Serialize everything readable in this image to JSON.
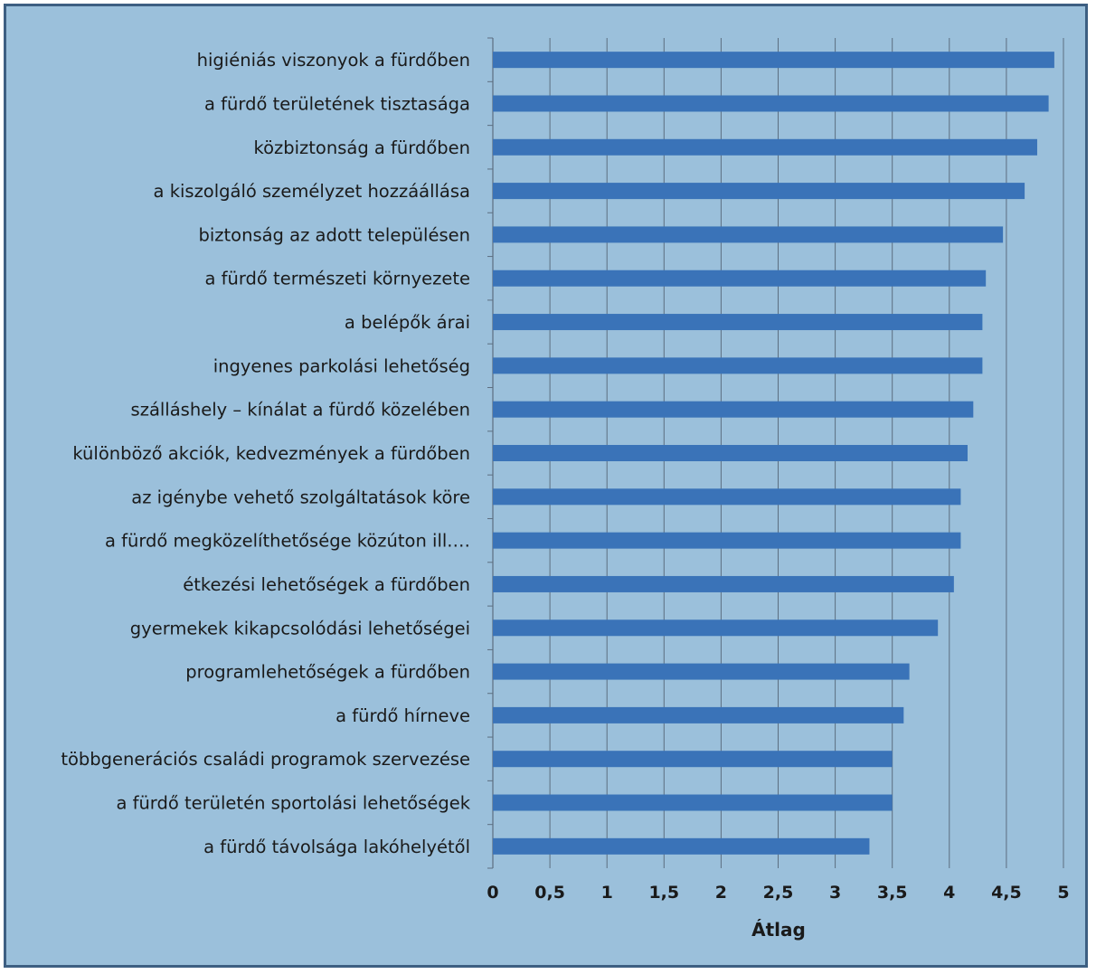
{
  "chart_data": {
    "type": "bar",
    "orientation": "horizontal",
    "xlabel": "Átlag",
    "xlim": [
      0,
      5
    ],
    "xticks": [
      "0",
      "0,5",
      "1",
      "1,5",
      "2",
      "2,5",
      "3",
      "3,5",
      "4",
      "4,5",
      "5"
    ],
    "grid": true,
    "bar_color": "#3a73b8",
    "background_color": "#9bc0db",
    "categories": [
      "higiéniás viszonyok a fürdőben",
      "a fürdő területének tisztasága",
      "közbiztonság a fürdőben",
      "a kiszolgáló személyzet hozzáállása",
      "biztonság az adott településen",
      "a fürdő természeti környezete",
      "a belépők árai",
      "ingyenes parkolási lehetőség",
      "szálláshely – kínálat a fürdő közelében",
      "különböző akciók, kedvezmények a fürdőben",
      "az igénybe vehető szolgáltatások köre",
      "a fürdő megközelíthetősége közúton ill.…",
      "étkezési lehetőségek a fürdőben",
      "gyermekek kikapcsolódási lehetőségei",
      "programlehetőségek a fürdőben",
      "a fürdő hírneve",
      "többgenerációs családi programok szervezése",
      "a fürdő területén sportolási lehetőségek",
      "a fürdő távolsága lakóhelyétől"
    ],
    "values": [
      4.92,
      4.87,
      4.77,
      4.66,
      4.47,
      4.32,
      4.29,
      4.29,
      4.21,
      4.16,
      4.1,
      4.1,
      4.04,
      3.9,
      3.65,
      3.6,
      3.5,
      3.5,
      3.3
    ]
  }
}
